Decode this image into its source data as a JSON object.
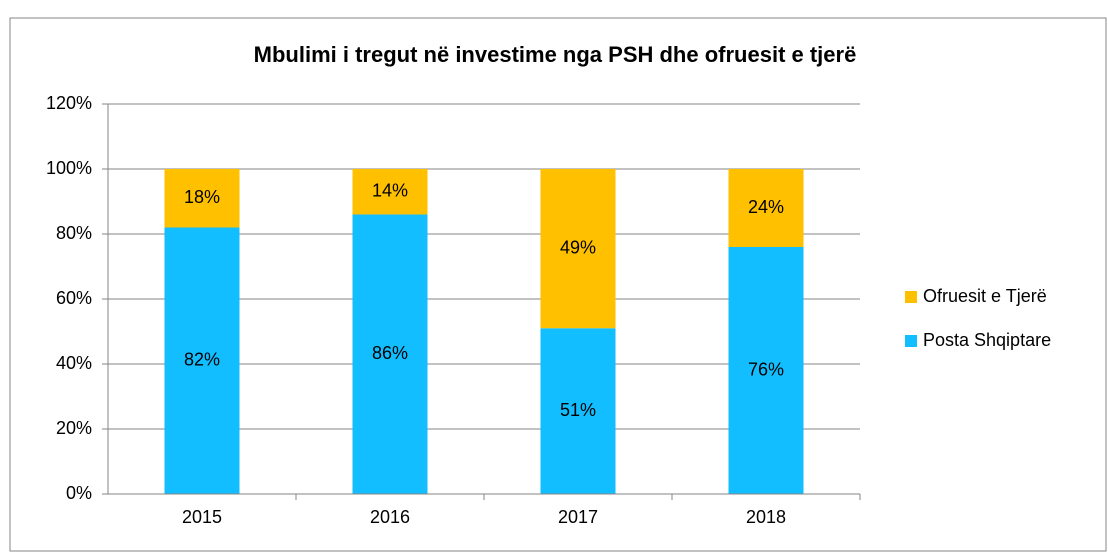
{
  "chart_data": {
    "type": "bar",
    "stacked": true,
    "title": "Mbulimi i tregut në investime nga PSH dhe ofruesit e tjerë",
    "categories": [
      "2015",
      "2016",
      "2017",
      "2018"
    ],
    "series": [
      {
        "name": "Posta Shqiptare",
        "color": "#12BEFF",
        "values": [
          82,
          86,
          51,
          76
        ],
        "value_labels": [
          "82%",
          "86%",
          "51%",
          "76%"
        ]
      },
      {
        "name": "Ofruesit e Tjerë",
        "color": "#FFC000",
        "values": [
          18,
          14,
          49,
          24
        ],
        "value_labels": [
          "18%",
          "14%",
          "49%",
          "24%"
        ]
      }
    ],
    "ylim": [
      0,
      120
    ],
    "yticks": [
      {
        "value": 0,
        "label": "0%"
      },
      {
        "value": 20,
        "label": "20%"
      },
      {
        "value": 40,
        "label": "40%"
      },
      {
        "value": 60,
        "label": "60%"
      },
      {
        "value": 80,
        "label": "80%"
      },
      {
        "value": 100,
        "label": "100%"
      },
      {
        "value": 120,
        "label": "120%"
      }
    ],
    "grid": true,
    "legend": "right"
  }
}
